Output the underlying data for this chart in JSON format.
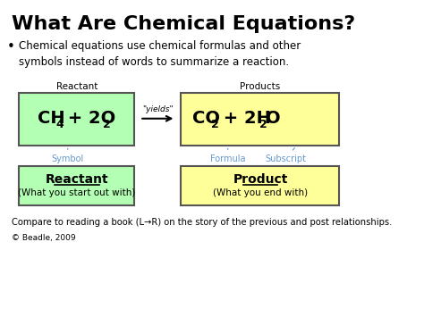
{
  "title": "What Are Chemical Equations?",
  "bullet_text": "Chemical equations use chemical formulas and other\nsymbols instead of words to summarize a reaction.",
  "reactant_label": "Reactant",
  "products_label": "Products",
  "yields_text": "\"yields\"",
  "symbol_label": "Symbol",
  "formula_label": "Formula",
  "subscript_label": "Subscript",
  "reactant_bottom_title": "Reactant",
  "reactant_bottom_sub": "(What you start out with)",
  "product_bottom_title": "Product",
  "product_bottom_sub": "(What you end with)",
  "footer_text": "Compare to reading a book (L→R) on the story of the previous and post relationships.",
  "copyright_text": "© Beadle, 2009",
  "bg_color": "#ffffff",
  "reactant_box_color": "#b3ffb3",
  "product_box_color": "#ffff99",
  "label_color": "#6699cc",
  "title_color": "#000000",
  "text_color": "#000000"
}
